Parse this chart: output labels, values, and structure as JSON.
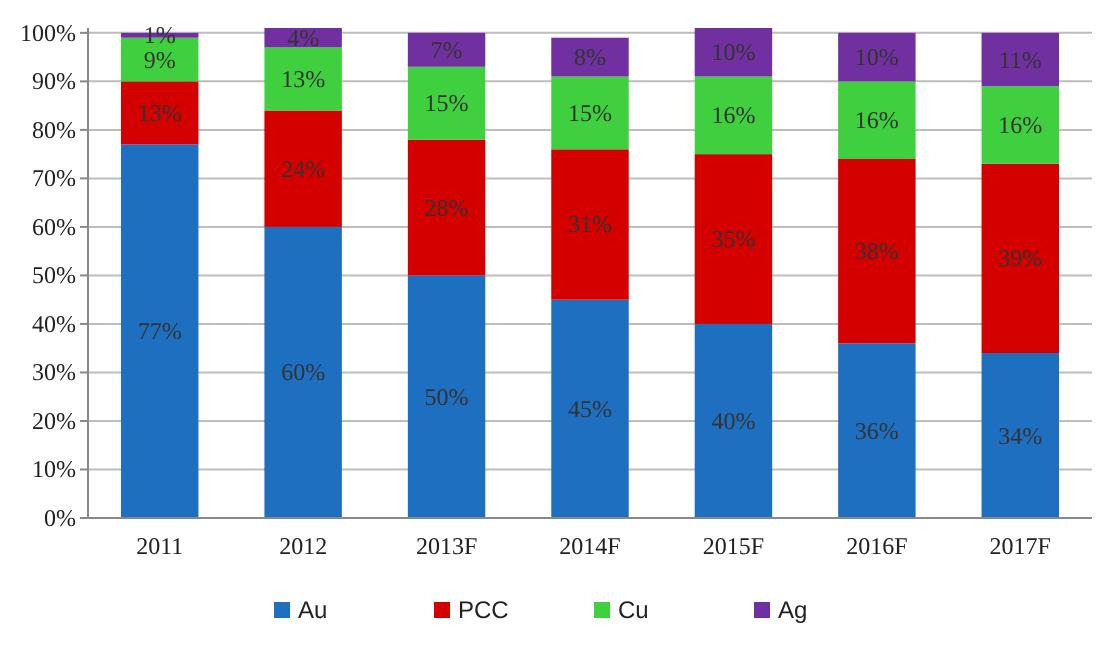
{
  "chart_data": {
    "type": "bar",
    "stacked": true,
    "categories": [
      "2011",
      "2012",
      "2013F",
      "2014F",
      "2015F",
      "2016F",
      "2017F"
    ],
    "series": [
      {
        "name": "Au",
        "color": "#1f6fc0",
        "values": [
          77,
          60,
          50,
          45,
          40,
          36,
          34
        ]
      },
      {
        "name": "PCC",
        "color": "#d40000",
        "values": [
          13,
          24,
          28,
          31,
          35,
          38,
          39
        ]
      },
      {
        "name": "Cu",
        "color": "#3fcf3f",
        "values": [
          9,
          13,
          15,
          15,
          16,
          16,
          16
        ]
      },
      {
        "name": "Ag",
        "color": "#7030a0",
        "values": [
          1,
          4,
          7,
          8,
          10,
          10,
          11
        ]
      }
    ],
    "ylim": [
      0,
      101
    ],
    "yticks": [
      {
        "value": 0,
        "label": "0%"
      },
      {
        "value": 10,
        "label": "10%"
      },
      {
        "value": 20,
        "label": "20%"
      },
      {
        "value": 30,
        "label": "30%"
      },
      {
        "value": 40,
        "label": "40%"
      },
      {
        "value": 50,
        "label": "50%"
      },
      {
        "value": 60,
        "label": "60%"
      },
      {
        "value": 70,
        "label": "70%"
      },
      {
        "value": 80,
        "label": "80%"
      },
      {
        "value": 90,
        "label": "90%"
      },
      {
        "value": 100,
        "label": "100%"
      }
    ],
    "value_labels": [
      [
        "77%",
        "60%",
        "50%",
        "45%",
        "40%",
        "36%",
        "34%"
      ],
      [
        "13%",
        "24%",
        "28%",
        "31%",
        "35%",
        "38%",
        "39%"
      ],
      [
        "9%",
        "13%",
        "15%",
        "15%",
        "16%",
        "16%",
        "16%"
      ],
      [
        "1%",
        "4%",
        "7%",
        "8%",
        "10%",
        "10%",
        "11%"
      ]
    ],
    "grid": "y",
    "legend": "bottom"
  }
}
